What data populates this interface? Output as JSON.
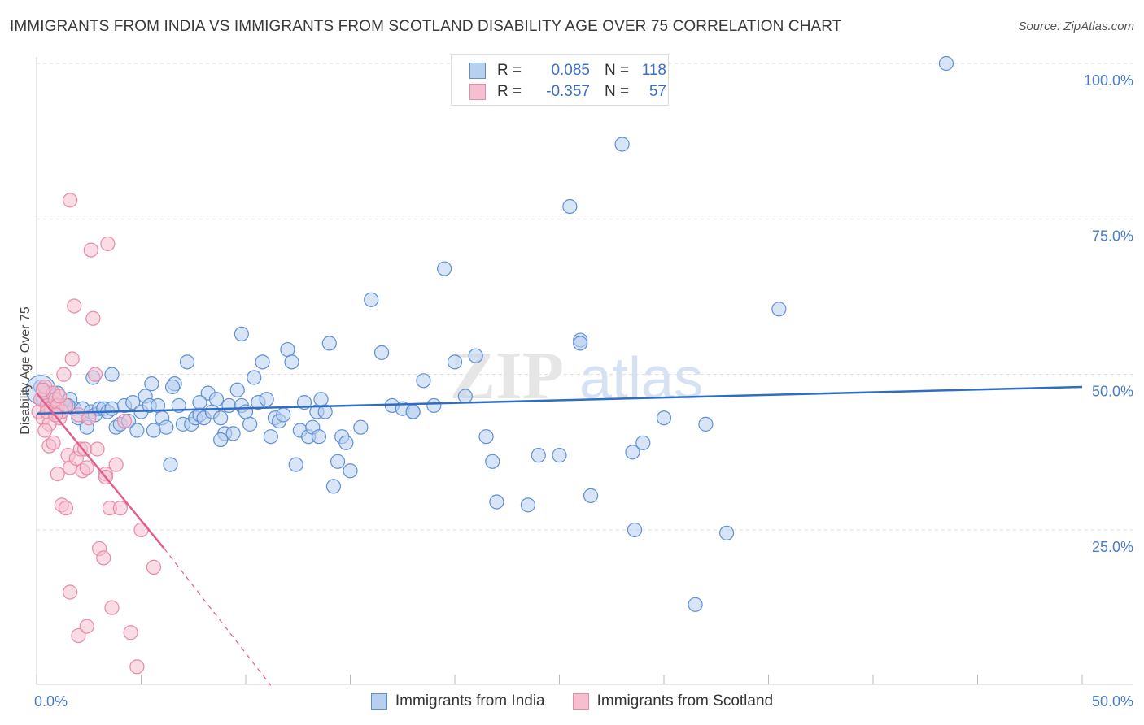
{
  "title": "IMMIGRANTS FROM INDIA VS IMMIGRANTS FROM SCOTLAND DISABILITY AGE OVER 75 CORRELATION CHART",
  "source": "Source: ZipAtlas.com",
  "watermark": {
    "zip": "ZIP",
    "atlas": "atlas"
  },
  "legend_stats": {
    "india": {
      "r_label": "R =",
      "r_value": "0.085",
      "n_label": "N =",
      "n_value": "118"
    },
    "scotland": {
      "r_label": "R =",
      "r_value": "-0.357",
      "n_label": "N =",
      "n_value": "57"
    }
  },
  "bottom_legend": {
    "india": "Immigrants from India",
    "scotland": "Immigrants from Scotland"
  },
  "colors": {
    "india_fill": "#b8d0ef",
    "india_stroke": "#5f8fd6",
    "india_line": "#2f6dc5",
    "scotland_fill": "#f6bfd0",
    "scotland_stroke": "#e88aa8",
    "scotland_line": "#e0608c",
    "tick_text": "#4a7cc9",
    "grid": "#dddddd"
  },
  "chart_data": {
    "type": "scatter",
    "title": "IMMIGRANTS FROM INDIA VS IMMIGRANTS FROM SCOTLAND DISABILITY AGE OVER 75 CORRELATION CHART",
    "xlabel": "",
    "ylabel": "Disability Age Over 75",
    "xlim": [
      0,
      50
    ],
    "ylim": [
      0,
      105
    ],
    "x_tick_labels": [
      "0.0%",
      "50.0%"
    ],
    "y_ticks": [
      25,
      50,
      75,
      100
    ],
    "y_tick_labels": [
      "25.0%",
      "50.0%",
      "75.0%",
      "100.0%"
    ],
    "series": [
      {
        "name": "Immigrants from India",
        "trend": {
          "x0": 0,
          "y0": 43.7,
          "x1": 50,
          "y1": 48.0
        },
        "points": [
          [
            0.2,
            48
          ],
          [
            0.3,
            46
          ],
          [
            0.5,
            47
          ],
          [
            0.6,
            45
          ],
          [
            0.8,
            45.5
          ],
          [
            1.0,
            47
          ],
          [
            1.2,
            44
          ],
          [
            1.4,
            45
          ],
          [
            1.6,
            46
          ],
          [
            1.8,
            44.5
          ],
          [
            2.0,
            43
          ],
          [
            2.2,
            44.5
          ],
          [
            2.4,
            41.5
          ],
          [
            2.6,
            44
          ],
          [
            2.8,
            43.5
          ],
          [
            3.0,
            44.5
          ],
          [
            3.2,
            44.5
          ],
          [
            3.4,
            44
          ],
          [
            3.6,
            44.5
          ],
          [
            3.8,
            41.5
          ],
          [
            4.0,
            42
          ],
          [
            4.2,
            45
          ],
          [
            4.4,
            42.5
          ],
          [
            4.6,
            45.5
          ],
          [
            4.8,
            41
          ],
          [
            5.0,
            44
          ],
          [
            5.2,
            46.5
          ],
          [
            5.4,
            45
          ],
          [
            5.6,
            41
          ],
          [
            5.8,
            45
          ],
          [
            6.0,
            43
          ],
          [
            6.2,
            41.5
          ],
          [
            6.4,
            35.5
          ],
          [
            6.6,
            48.5
          ],
          [
            6.8,
            45
          ],
          [
            7.0,
            42
          ],
          [
            7.2,
            52
          ],
          [
            7.4,
            42
          ],
          [
            7.6,
            43
          ],
          [
            7.8,
            43.5
          ],
          [
            8.0,
            43
          ],
          [
            8.2,
            47
          ],
          [
            8.4,
            44
          ],
          [
            8.6,
            46
          ],
          [
            8.8,
            43
          ],
          [
            9.0,
            40.5
          ],
          [
            9.2,
            45
          ],
          [
            9.4,
            40.5
          ],
          [
            9.6,
            47.5
          ],
          [
            9.8,
            45
          ],
          [
            10.0,
            44
          ],
          [
            10.2,
            42
          ],
          [
            10.4,
            49.5
          ],
          [
            10.6,
            45.5
          ],
          [
            10.8,
            52
          ],
          [
            11.0,
            46
          ],
          [
            11.2,
            40
          ],
          [
            11.4,
            43
          ],
          [
            11.6,
            42.5
          ],
          [
            11.8,
            43.5
          ],
          [
            12.0,
            54
          ],
          [
            12.2,
            52
          ],
          [
            12.4,
            35.5
          ],
          [
            12.6,
            41
          ],
          [
            12.8,
            45.5
          ],
          [
            13.0,
            40
          ],
          [
            13.2,
            41.5
          ],
          [
            13.4,
            44
          ],
          [
            13.6,
            46
          ],
          [
            13.8,
            44
          ],
          [
            14.0,
            55
          ],
          [
            14.2,
            32
          ],
          [
            14.4,
            36
          ],
          [
            14.6,
            40
          ],
          [
            14.8,
            39
          ],
          [
            15.0,
            34.5
          ],
          [
            15.5,
            41.5
          ],
          [
            16.0,
            62
          ],
          [
            16.5,
            53.5
          ],
          [
            17.0,
            45
          ],
          [
            17.5,
            44.5
          ],
          [
            18.0,
            44
          ],
          [
            18.5,
            49
          ],
          [
            19.0,
            45
          ],
          [
            19.5,
            67
          ],
          [
            20.0,
            52
          ],
          [
            20.5,
            46.5
          ],
          [
            21.0,
            53
          ],
          [
            21.5,
            40
          ],
          [
            21.8,
            36
          ],
          [
            22.0,
            29.5
          ],
          [
            23.5,
            29
          ],
          [
            24.0,
            37
          ],
          [
            25.0,
            37
          ],
          [
            25.5,
            77
          ],
          [
            26.0,
            55.5
          ],
          [
            26.5,
            30.5
          ],
          [
            28.0,
            87
          ],
          [
            28.5,
            37.5
          ],
          [
            29.0,
            39
          ],
          [
            30.0,
            43
          ],
          [
            32.0,
            42
          ],
          [
            33.0,
            24.5
          ],
          [
            35.5,
            60.5
          ],
          [
            43.5,
            100
          ],
          [
            9.8,
            56.5
          ],
          [
            6.5,
            48
          ],
          [
            5.5,
            48.5
          ],
          [
            2.7,
            49.5
          ],
          [
            28.6,
            25
          ],
          [
            31.5,
            13
          ],
          [
            1.5,
            45
          ],
          [
            7.8,
            45.5
          ],
          [
            13.5,
            40
          ],
          [
            3.6,
            50
          ],
          [
            18.0,
            44
          ],
          [
            8.8,
            39.5
          ],
          [
            26.0,
            55
          ]
        ]
      },
      {
        "name": "Immigrants from Scotland",
        "trend": {
          "x0": 0,
          "y0": 47.0,
          "x1": 6.1,
          "y1": 22.0,
          "dash_x1": 11.2,
          "dash_y1": 0
        },
        "points": [
          [
            0.1,
            44
          ],
          [
            0.2,
            46
          ],
          [
            0.3,
            43
          ],
          [
            0.4,
            48
          ],
          [
            0.5,
            45
          ],
          [
            0.6,
            42
          ],
          [
            0.7,
            44.5
          ],
          [
            0.8,
            47
          ],
          [
            0.9,
            46
          ],
          [
            1.0,
            45
          ],
          [
            1.1,
            43
          ],
          [
            1.2,
            44
          ],
          [
            1.3,
            50
          ],
          [
            1.4,
            45
          ],
          [
            1.5,
            37
          ],
          [
            1.6,
            35
          ],
          [
            1.7,
            52.5
          ],
          [
            1.8,
            61
          ],
          [
            1.9,
            36.5
          ],
          [
            2.0,
            43.5
          ],
          [
            2.1,
            38
          ],
          [
            2.2,
            34.5
          ],
          [
            2.3,
            38
          ],
          [
            2.4,
            35
          ],
          [
            2.5,
            43
          ],
          [
            2.6,
            70
          ],
          [
            2.7,
            59
          ],
          [
            2.8,
            50
          ],
          [
            2.9,
            38
          ],
          [
            3.0,
            22
          ],
          [
            3.2,
            20.5
          ],
          [
            3.3,
            34
          ],
          [
            3.4,
            71
          ],
          [
            3.5,
            28.5
          ],
          [
            3.6,
            12.5
          ],
          [
            3.8,
            35.5
          ],
          [
            4.0,
            28.5
          ],
          [
            4.2,
            42.5
          ],
          [
            4.5,
            8.5
          ],
          [
            4.8,
            3
          ],
          [
            5.0,
            25
          ],
          [
            5.6,
            19
          ],
          [
            1.6,
            78
          ],
          [
            0.6,
            38.5
          ],
          [
            0.8,
            39
          ],
          [
            1.0,
            34
          ],
          [
            1.2,
            29
          ],
          [
            1.4,
            28.5
          ],
          [
            1.6,
            15
          ],
          [
            2.0,
            8
          ],
          [
            0.3,
            47.5
          ],
          [
            0.5,
            44
          ],
          [
            0.9,
            43.5
          ],
          [
            1.1,
            46.5
          ],
          [
            0.4,
            41
          ],
          [
            2.4,
            9.5
          ],
          [
            3.3,
            33.5
          ]
        ]
      }
    ]
  }
}
